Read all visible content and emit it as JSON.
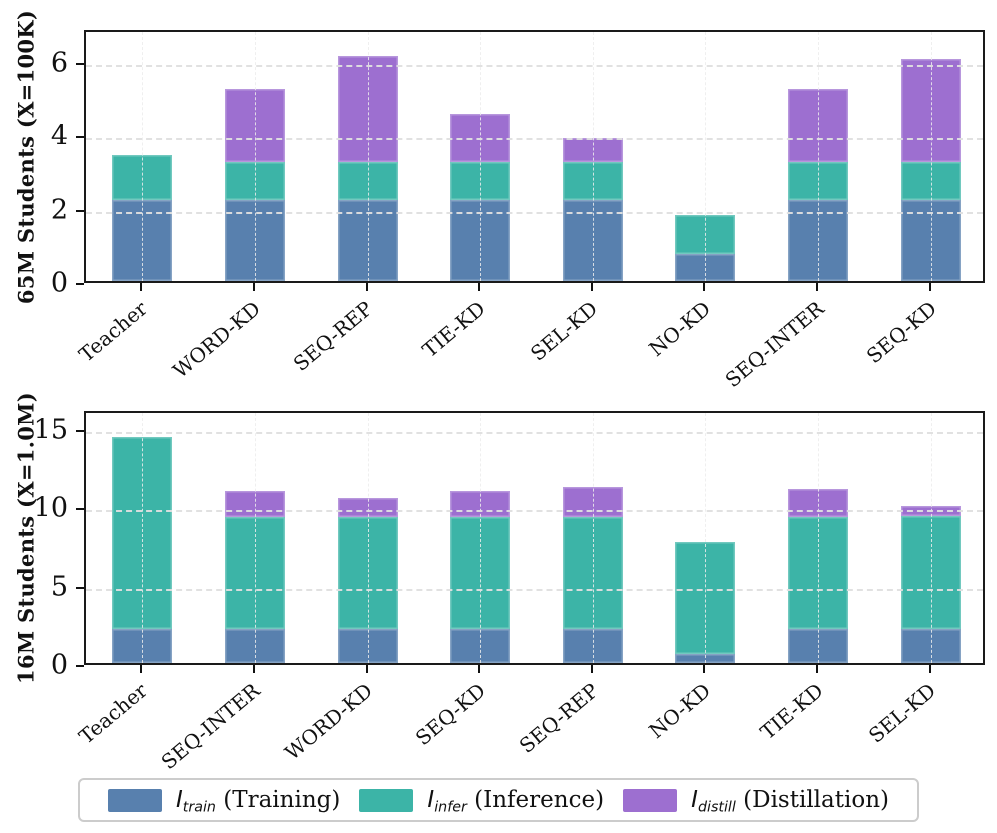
{
  "legend": {
    "items": [
      {
        "symbol": "I",
        "sub": "train",
        "rest": "(Training)",
        "color": "#5880ae"
      },
      {
        "symbol": "I",
        "sub": "infer",
        "rest": "(Inference)",
        "color": "#3cb4a7"
      },
      {
        "symbol": "I",
        "sub": "distill",
        "rest": "(Distillation)",
        "color": "#9d6fd0"
      }
    ]
  },
  "chart_data": [
    {
      "type": "bar",
      "stacked": true,
      "ylabel": "65M Students (X=100K)",
      "xlabel": "",
      "categories": [
        "Teacher",
        "WORD-KD",
        "SEQ-REP",
        "TIE-KD",
        "SEL-KD",
        "NO-KD",
        "SEQ-INTER",
        "SEQ-KD"
      ],
      "series": [
        {
          "name": "I_train (Training)",
          "color": "#5880ae",
          "values": [
            2.2,
            2.2,
            2.2,
            2.2,
            2.2,
            0.75,
            2.2,
            2.2
          ]
        },
        {
          "name": "I_infer (Inference)",
          "color": "#3cb4a7",
          "values": [
            1.25,
            1.05,
            1.05,
            1.05,
            1.05,
            1.05,
            1.05,
            1.05
          ]
        },
        {
          "name": "I_distill (Distillation)",
          "color": "#9d6fd0",
          "values": [
            0,
            2.0,
            2.9,
            1.3,
            0.65,
            0,
            2.0,
            2.8
          ]
        }
      ],
      "totals": [
        3.45,
        5.25,
        6.15,
        4.55,
        3.9,
        1.8,
        5.25,
        6.05
      ],
      "yticks": [
        "0",
        "2",
        "4",
        "6"
      ],
      "ytick_values": [
        0,
        2,
        4,
        6
      ],
      "ylim": [
        0,
        6.9
      ],
      "grid": "dashed",
      "legend_position": "bottom"
    },
    {
      "type": "bar",
      "stacked": true,
      "ylabel": "16M Students (X=1.0M)",
      "xlabel": "",
      "categories": [
        "Teacher",
        "SEQ-INTER",
        "WORD-KD",
        "SEQ-KD",
        "SEQ-REP",
        "NO-KD",
        "TIE-KD",
        "SEL-KD"
      ],
      "series": [
        {
          "name": "I_train (Training)",
          "color": "#5880ae",
          "values": [
            2.2,
            2.2,
            2.2,
            2.2,
            2.2,
            0.55,
            2.2,
            2.2
          ]
        },
        {
          "name": "I_infer (Inference)",
          "color": "#3cb4a7",
          "values": [
            12.2,
            7.1,
            7.1,
            7.1,
            7.1,
            7.15,
            7.1,
            7.15
          ]
        },
        {
          "name": "I_distill (Distillation)",
          "color": "#9d6fd0",
          "values": [
            0,
            1.7,
            1.2,
            1.7,
            1.9,
            0,
            1.8,
            0.65
          ]
        }
      ],
      "totals": [
        14.4,
        11.0,
        10.5,
        11.0,
        11.2,
        7.7,
        11.1,
        10.0
      ],
      "yticks": [
        "0",
        "5",
        "10",
        "15"
      ],
      "ytick_values": [
        0,
        5,
        10,
        15
      ],
      "ylim": [
        0,
        16.2
      ],
      "grid": "dashed",
      "legend_position": "bottom"
    }
  ]
}
